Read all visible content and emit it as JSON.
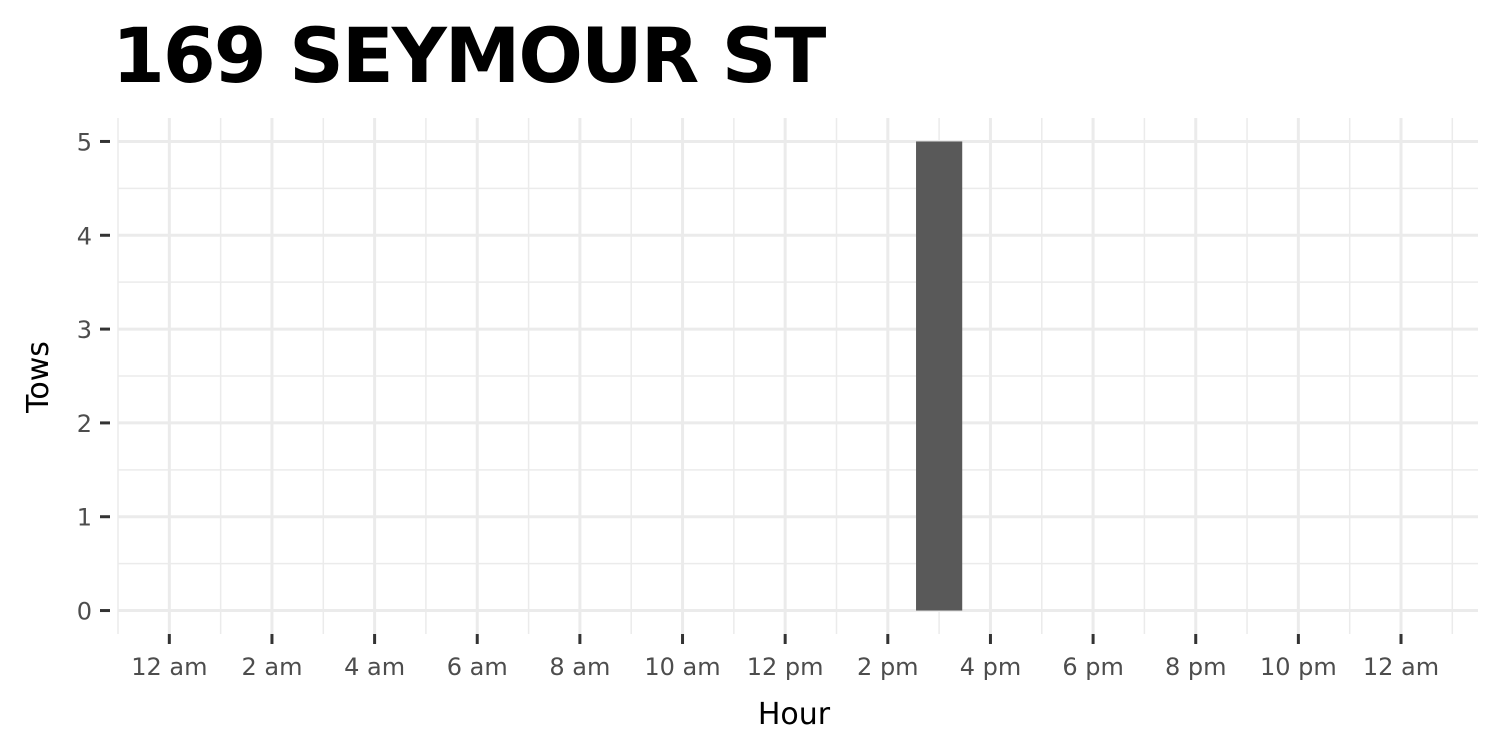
{
  "chart_data": {
    "type": "bar",
    "title": "169 SEYMOUR ST",
    "xlabel": "Hour",
    "ylabel": "Tows",
    "x_tick_labels": [
      "12 am",
      "2 am",
      "4 am",
      "6 am",
      "8 am",
      "10 am",
      "12 pm",
      "2 pm",
      "4 pm",
      "6 pm",
      "8 pm",
      "10 pm",
      "12 am"
    ],
    "x_ticks_hours": [
      0,
      2,
      4,
      6,
      8,
      10,
      12,
      14,
      16,
      18,
      20,
      22,
      24
    ],
    "y_ticks": [
      0,
      1,
      2,
      3,
      4,
      5
    ],
    "xlim": [
      -1,
      25.5
    ],
    "ylim": [
      -0.25,
      5.25
    ],
    "x": [
      15
    ],
    "values": [
      5
    ],
    "bar_color": "#595959",
    "grid": true,
    "grid_color": "#ebebeb",
    "background": "#ffffff"
  }
}
